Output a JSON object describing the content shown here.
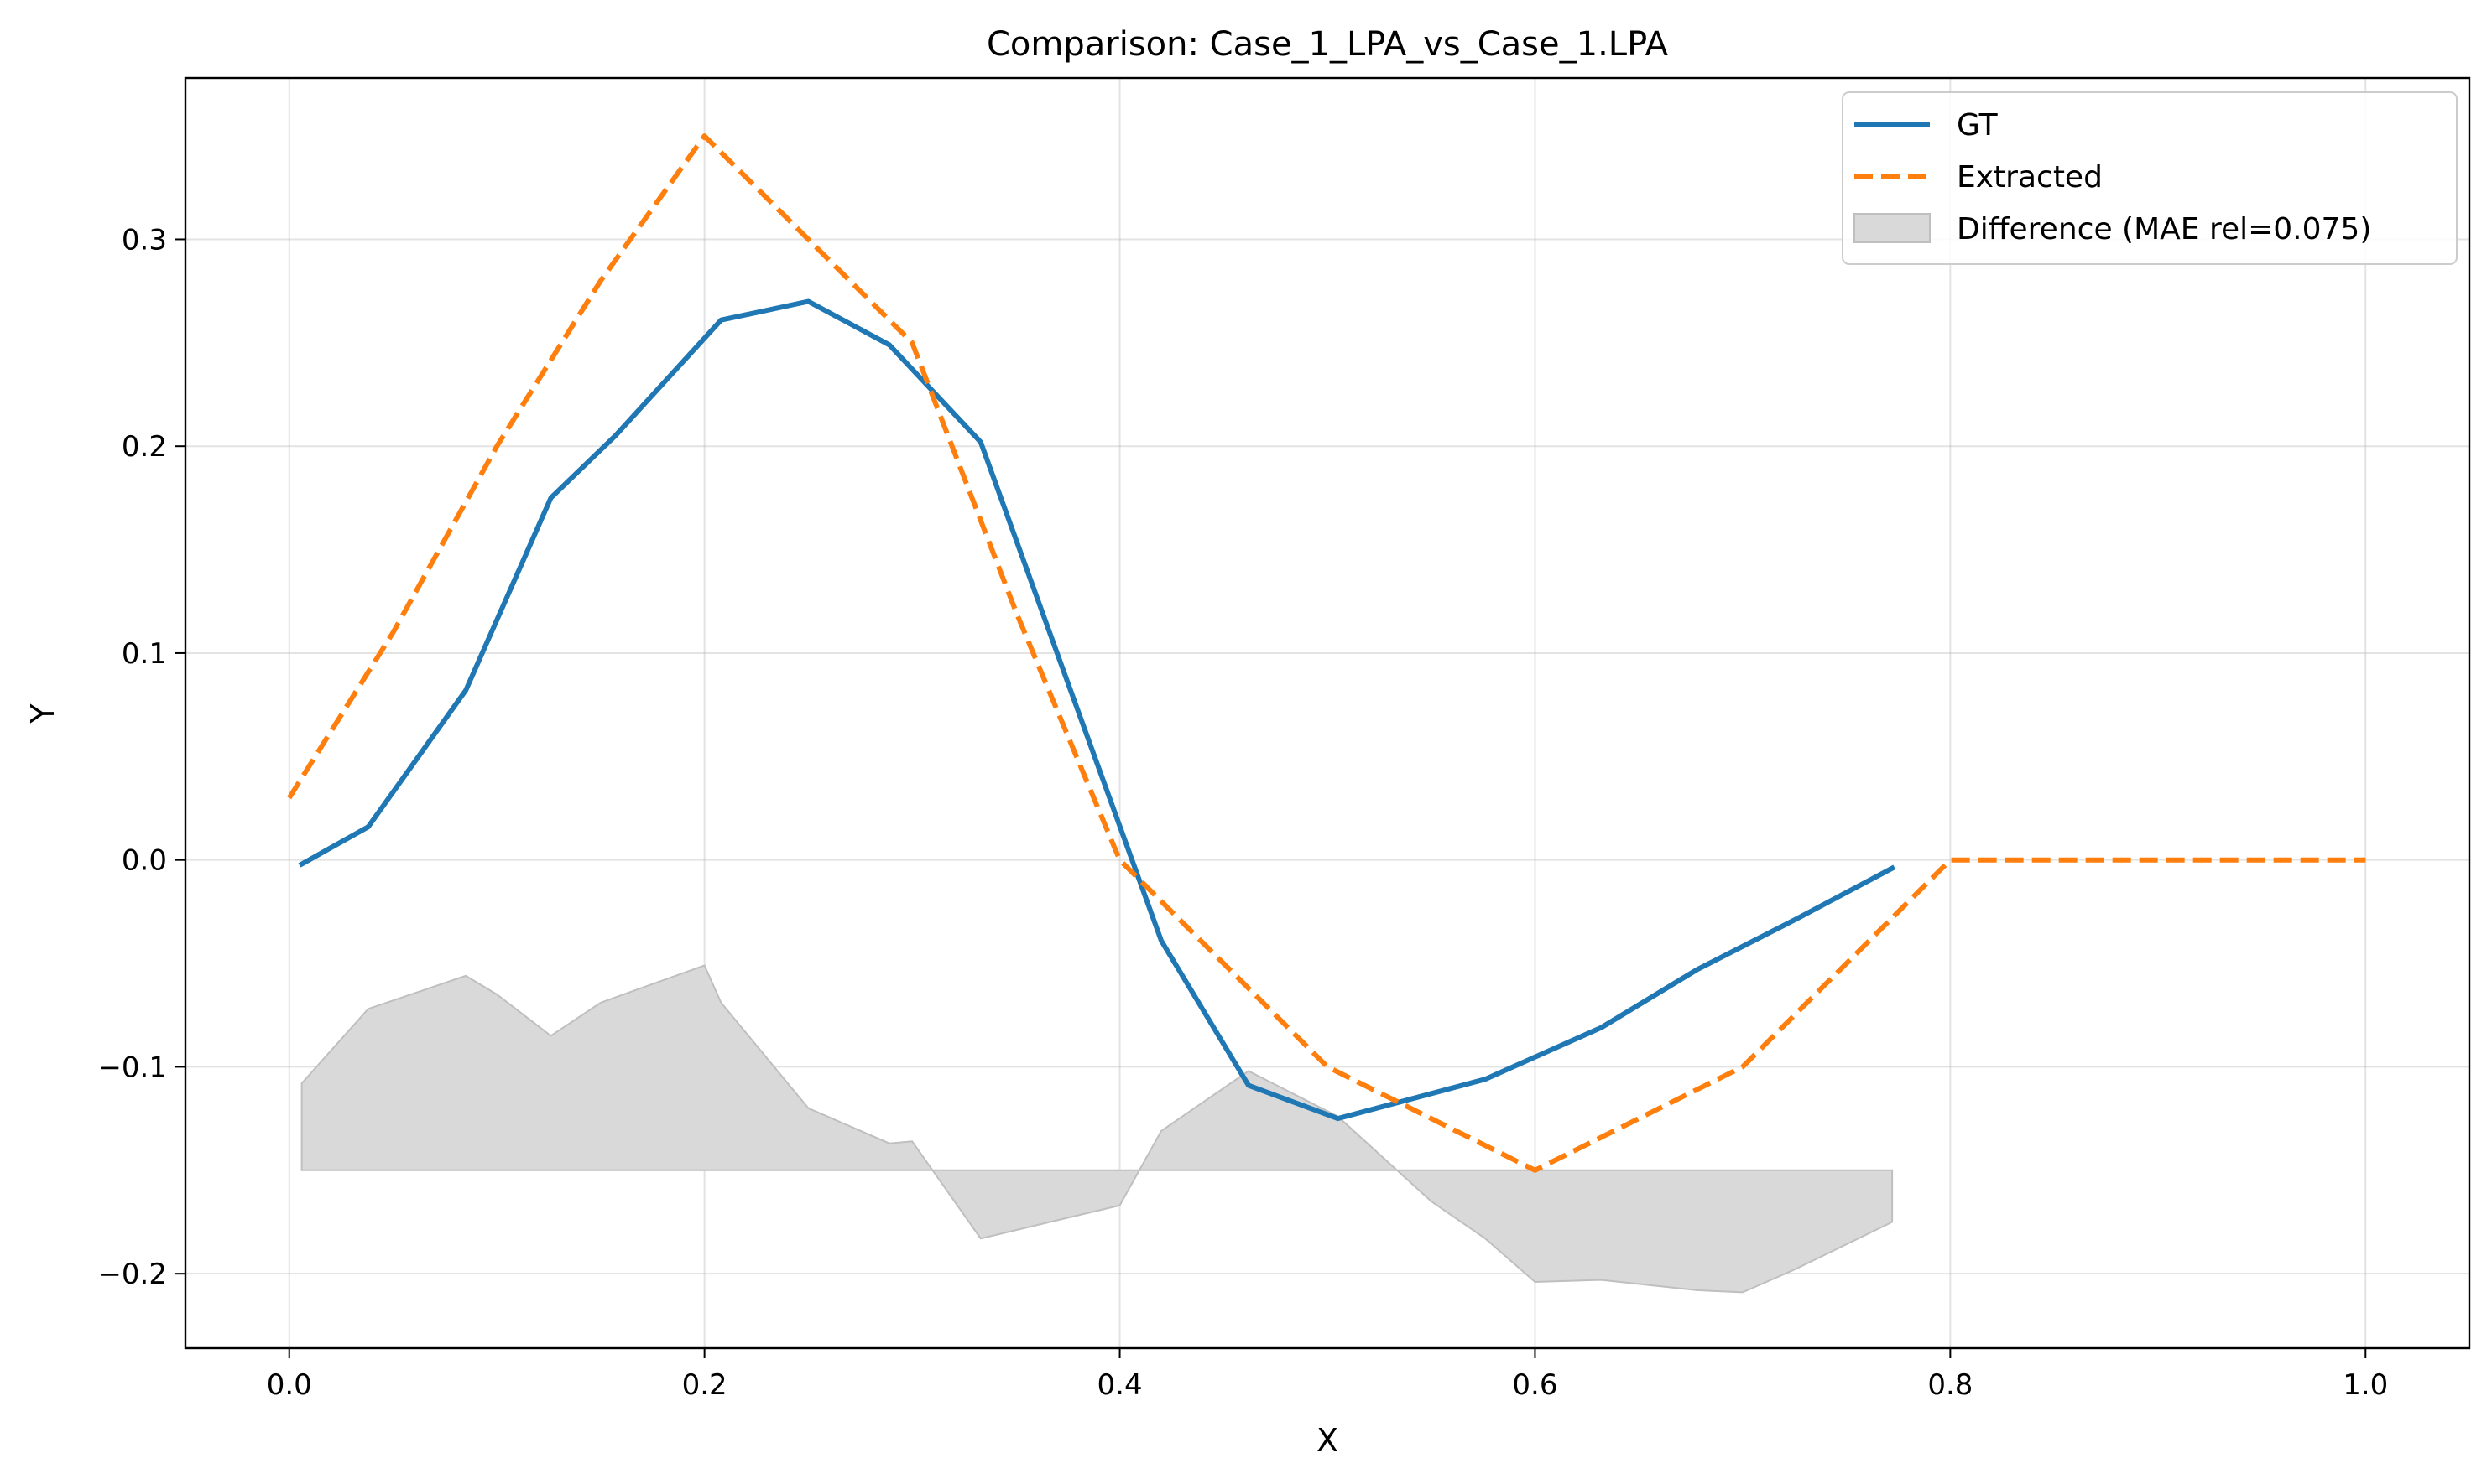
{
  "chart_data": {
    "type": "line",
    "title": "Comparison: Case_1_LPA_vs_Case_1.LPA",
    "xlabel": "X",
    "ylabel": "Y",
    "xlim": [
      -0.05,
      1.05
    ],
    "ylim": [
      -0.236,
      0.378
    ],
    "xticks": [
      0.0,
      0.2,
      0.4,
      0.6,
      0.8,
      1.0
    ],
    "xtick_labels": [
      "0.0",
      "0.2",
      "0.4",
      "0.6",
      "0.8",
      "1.0"
    ],
    "yticks": [
      -0.2,
      -0.1,
      0.0,
      0.1,
      0.2,
      0.3
    ],
    "ytick_labels": [
      "−0.2",
      "−0.1",
      "0.0",
      "0.1",
      "0.2",
      "0.3"
    ],
    "grid": true,
    "legend_position": "top-right",
    "series": [
      {
        "name": "GT",
        "style": "solid",
        "color": "#1f77b4",
        "x": [
          0.006,
          0.038,
          0.085,
          0.126,
          0.157,
          0.208,
          0.25,
          0.289,
          0.333,
          0.42,
          0.462,
          0.505,
          0.576,
          0.632,
          0.678,
          0.725,
          0.772
        ],
        "y": [
          -0.002,
          0.016,
          0.082,
          0.175,
          0.205,
          0.261,
          0.27,
          0.249,
          0.202,
          -0.039,
          -0.109,
          -0.125,
          -0.106,
          -0.081,
          -0.053,
          -0.029,
          -0.004
        ]
      },
      {
        "name": "Extracted",
        "style": "dashed",
        "color": "#ff7f0e",
        "x": [
          0.0,
          0.05,
          0.1,
          0.15,
          0.2,
          0.25,
          0.3,
          0.35,
          0.4,
          0.45,
          0.5,
          0.55,
          0.6,
          0.65,
          0.7,
          0.75,
          0.8,
          0.85,
          0.9,
          0.95,
          1.0
        ],
        "y": [
          0.03,
          0.11,
          0.2,
          0.28,
          0.35,
          0.3,
          0.25,
          0.12,
          0.0,
          -0.05,
          -0.1,
          -0.125,
          -0.15,
          -0.125,
          -0.1,
          -0.05,
          0.0,
          0.0,
          0.0,
          0.0,
          0.0
        ]
      },
      {
        "name": "Difference (MAE rel=0.075)",
        "style": "fill",
        "color": "#d9d9d9",
        "baseline": -0.15,
        "x": [
          0.006,
          0.038,
          0.085,
          0.1,
          0.126,
          0.15,
          0.2,
          0.208,
          0.25,
          0.289,
          0.3,
          0.333,
          0.4,
          0.42,
          0.462,
          0.505,
          0.55,
          0.576,
          0.6,
          0.632,
          0.678,
          0.7,
          0.725,
          0.772
        ],
        "y": [
          -0.108,
          -0.072,
          -0.056,
          -0.065,
          -0.085,
          -0.069,
          -0.051,
          -0.069,
          -0.12,
          -0.137,
          -0.136,
          -0.183,
          -0.167,
          -0.131,
          -0.102,
          -0.124,
          -0.165,
          -0.183,
          -0.204,
          -0.203,
          -0.208,
          -0.209,
          -0.198,
          -0.175
        ]
      }
    ]
  }
}
